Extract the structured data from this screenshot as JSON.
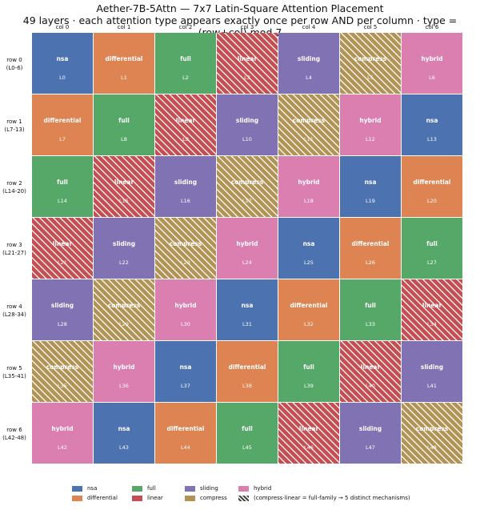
{
  "title": "Aether-7B-5Attn — 7x7 Latin-Square Attention Placement",
  "subtitle": "49 layers · each attention type appears exactly once per row AND per column · type = (row+col) mod 7",
  "columns": [
    "col 0",
    "col 1",
    "col 2",
    "col 3",
    "col 4",
    "col 5",
    "col 6"
  ],
  "rows": [
    {
      "label": "row 0",
      "range": "(L0-6)"
    },
    {
      "label": "row 1",
      "range": "(L7-13)"
    },
    {
      "label": "row 2",
      "range": "(L14-20)"
    },
    {
      "label": "row 3",
      "range": "(L21-27)"
    },
    {
      "label": "row 4",
      "range": "(L28-34)"
    },
    {
      "label": "row 5",
      "range": "(L35-41)"
    },
    {
      "label": "row 6",
      "range": "(L42-48)"
    }
  ],
  "types": [
    {
      "name": "nsa",
      "color": "#4c72b0",
      "hatched": false
    },
    {
      "name": "differential",
      "color": "#dd8452",
      "hatched": false
    },
    {
      "name": "full",
      "color": "#55a868",
      "hatched": false
    },
    {
      "name": "linear",
      "color": "#c44e52",
      "hatched": true
    },
    {
      "name": "sliding",
      "color": "#8172b3",
      "hatched": false
    },
    {
      "name": "compress",
      "color": "#b29356",
      "hatched": true
    },
    {
      "name": "hybrid",
      "color": "#da7fb0",
      "hatched": false
    }
  ],
  "cells": [
    [
      {
        "type": "nsa",
        "layer": "L0"
      },
      {
        "type": "differential",
        "layer": "L1"
      },
      {
        "type": "full",
        "layer": "L2"
      },
      {
        "type": "linear",
        "layer": "L3"
      },
      {
        "type": "sliding",
        "layer": "L4"
      },
      {
        "type": "compress",
        "layer": "L5"
      },
      {
        "type": "hybrid",
        "layer": "L6"
      }
    ],
    [
      {
        "type": "differential",
        "layer": "L7"
      },
      {
        "type": "full",
        "layer": "L8"
      },
      {
        "type": "linear",
        "layer": "L9"
      },
      {
        "type": "sliding",
        "layer": "L10"
      },
      {
        "type": "compress",
        "layer": "L11"
      },
      {
        "type": "hybrid",
        "layer": "L12"
      },
      {
        "type": "nsa",
        "layer": "L13"
      }
    ],
    [
      {
        "type": "full",
        "layer": "L14"
      },
      {
        "type": "linear",
        "layer": "L15"
      },
      {
        "type": "sliding",
        "layer": "L16"
      },
      {
        "type": "compress",
        "layer": "L17"
      },
      {
        "type": "hybrid",
        "layer": "L18"
      },
      {
        "type": "nsa",
        "layer": "L19"
      },
      {
        "type": "differential",
        "layer": "L20"
      }
    ],
    [
      {
        "type": "linear",
        "layer": "L21"
      },
      {
        "type": "sliding",
        "layer": "L22"
      },
      {
        "type": "compress",
        "layer": "L23"
      },
      {
        "type": "hybrid",
        "layer": "L24"
      },
      {
        "type": "nsa",
        "layer": "L25"
      },
      {
        "type": "differential",
        "layer": "L26"
      },
      {
        "type": "full",
        "layer": "L27"
      }
    ],
    [
      {
        "type": "sliding",
        "layer": "L28"
      },
      {
        "type": "compress",
        "layer": "L29"
      },
      {
        "type": "hybrid",
        "layer": "L30"
      },
      {
        "type": "nsa",
        "layer": "L31"
      },
      {
        "type": "differential",
        "layer": "L32"
      },
      {
        "type": "full",
        "layer": "L33"
      },
      {
        "type": "linear",
        "layer": "L34"
      }
    ],
    [
      {
        "type": "compress",
        "layer": "L35"
      },
      {
        "type": "hybrid",
        "layer": "L36"
      },
      {
        "type": "nsa",
        "layer": "L37"
      },
      {
        "type": "differential",
        "layer": "L38"
      },
      {
        "type": "full",
        "layer": "L39"
      },
      {
        "type": "linear",
        "layer": "L40"
      },
      {
        "type": "sliding",
        "layer": "L41"
      }
    ],
    [
      {
        "type": "hybrid",
        "layer": "L42"
      },
      {
        "type": "nsa",
        "layer": "L43"
      },
      {
        "type": "differential",
        "layer": "L44"
      },
      {
        "type": "full",
        "layer": "L45"
      },
      {
        "type": "linear",
        "layer": "L46"
      },
      {
        "type": "sliding",
        "layer": "L47"
      },
      {
        "type": "compress",
        "layer": "L48"
      }
    ]
  ],
  "legend": {
    "items": [
      "nsa",
      "differential",
      "full",
      "linear",
      "sliding",
      "compress",
      "hybrid"
    ],
    "note": "(compress·linear = full-family → 5 distinct mechanisms)"
  }
}
